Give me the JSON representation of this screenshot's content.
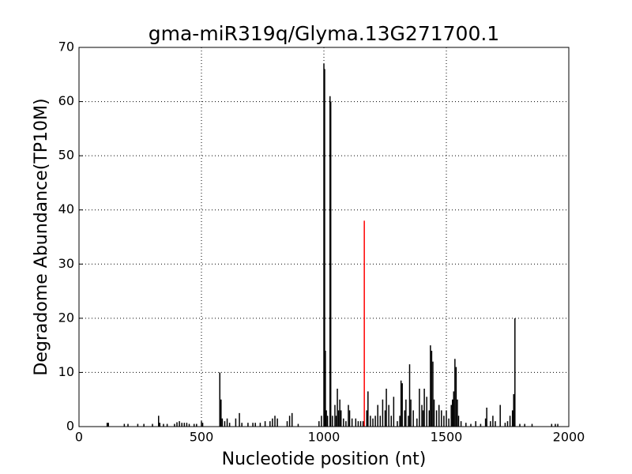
{
  "chart_data": {
    "type": "stem",
    "title": "gma-miR319q/Glyma.13G271700.1",
    "xlabel": "Nucleotide position (nt)",
    "ylabel": "Degradome Abundance(TP10M)",
    "xlim": [
      0,
      2000
    ],
    "xticks": [
      0,
      500,
      1000,
      1500,
      2000
    ],
    "ylim": [
      0,
      70
    ],
    "yticks": [
      0,
      10,
      20,
      30,
      40,
      50,
      60,
      70
    ],
    "grid": true,
    "series": [
      {
        "color": "#000000",
        "x": [
          115,
          120,
          185,
          200,
          240,
          265,
          300,
          325,
          330,
          345,
          360,
          390,
          400,
          410,
          420,
          430,
          440,
          450,
          470,
          480,
          500,
          505,
          575,
          580,
          585,
          595,
          605,
          615,
          640,
          655,
          665,
          690,
          710,
          720,
          740,
          760,
          780,
          790,
          800,
          810,
          850,
          860,
          870,
          895,
          980,
          990,
          1000,
          1003,
          1006,
          1010,
          1015,
          1025,
          1028,
          1035,
          1045,
          1050,
          1055,
          1060,
          1065,
          1070,
          1080,
          1090,
          1100,
          1105,
          1115,
          1130,
          1140,
          1150,
          1160,
          1175,
          1180,
          1190,
          1200,
          1210,
          1220,
          1230,
          1240,
          1250,
          1255,
          1265,
          1275,
          1285,
          1300,
          1310,
          1315,
          1320,
          1330,
          1335,
          1345,
          1350,
          1355,
          1365,
          1380,
          1390,
          1400,
          1405,
          1410,
          1420,
          1430,
          1435,
          1440,
          1445,
          1450,
          1460,
          1470,
          1480,
          1490,
          1500,
          1510,
          1520,
          1525,
          1530,
          1535,
          1540,
          1545,
          1550,
          1560,
          1580,
          1600,
          1620,
          1640,
          1660,
          1665,
          1680,
          1690,
          1700,
          1720,
          1740,
          1750,
          1760,
          1770,
          1775,
          1780,
          1800,
          1820,
          1850,
          1930,
          1945,
          1955
        ],
        "values": [
          0.7,
          0.7,
          0.5,
          0.5,
          0.5,
          0.5,
          0.5,
          2,
          0.7,
          0.5,
          0.5,
          0.5,
          0.8,
          1,
          0.7,
          0.7,
          0.7,
          0.5,
          0.5,
          0.5,
          1,
          0.7,
          10,
          5,
          1.5,
          1,
          1.5,
          0.7,
          1.5,
          2.5,
          0.7,
          0.7,
          0.7,
          0.7,
          0.7,
          1,
          1,
          1.5,
          2,
          1.5,
          1,
          2,
          2.5,
          0.5,
          1,
          2,
          67,
          66,
          14,
          3,
          2,
          61,
          60,
          2,
          4,
          2,
          7,
          3,
          5,
          3,
          1.5,
          1,
          4,
          3,
          1.5,
          1.5,
          1,
          1,
          1,
          3,
          6.5,
          2,
          1.5,
          2,
          4,
          2,
          5,
          3,
          7,
          4,
          2,
          5.5,
          1,
          2,
          8.5,
          8,
          3,
          5,
          2,
          11.5,
          5,
          3,
          1.5,
          7,
          4,
          3,
          7,
          5.5,
          3,
          15,
          14,
          12,
          5,
          3,
          4,
          3,
          2,
          3,
          1.5,
          4,
          5,
          6.5,
          12.5,
          11,
          5,
          2,
          1,
          0.7,
          0.5,
          1,
          0.5,
          1.5,
          3.5,
          1,
          2,
          1,
          4,
          0.7,
          1,
          2,
          3,
          6,
          20,
          0.5,
          0.5,
          0.5,
          0.5,
          0.5,
          0.5
        ]
      },
      {
        "color": "#ff0000",
        "x": [
          1165
        ],
        "values": [
          38
        ]
      }
    ]
  }
}
